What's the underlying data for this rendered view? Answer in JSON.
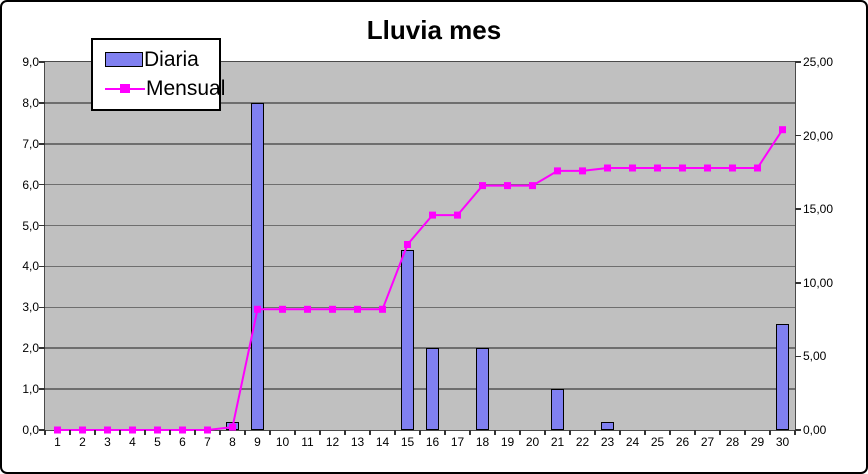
{
  "figure": {
    "title": "Lluvia mes"
  },
  "legend": {
    "items": [
      {
        "label": "Diaria",
        "swatch": "bar-swatch-icon"
      },
      {
        "label": "Mensual",
        "swatch": "line-swatch-icon"
      }
    ]
  },
  "chart_data": {
    "type": "bar",
    "subtype": "combo-bar-line",
    "title": "Lluvia mes",
    "xlabel": "",
    "ylabel": "",
    "grid": true,
    "legend_position": "top-left",
    "plot_bg": "#C0C0C0",
    "categories": [
      1,
      2,
      3,
      4,
      5,
      6,
      7,
      8,
      9,
      10,
      11,
      12,
      13,
      14,
      15,
      16,
      17,
      18,
      19,
      20,
      21,
      22,
      23,
      24,
      25,
      26,
      27,
      28,
      29,
      30
    ],
    "series": [
      {
        "name": "Diaria",
        "type": "bar",
        "axis": "left",
        "color": "#8080F0",
        "border_color": "#000000",
        "values": [
          0,
          0,
          0,
          0,
          0,
          0,
          0,
          0.2,
          8,
          0,
          0,
          0,
          0,
          0,
          4.4,
          2,
          0,
          2,
          0,
          0,
          1,
          0,
          0.2,
          0,
          0,
          0,
          0,
          0,
          0,
          2.6
        ]
      },
      {
        "name": "Mensual",
        "type": "line",
        "axis": "right",
        "color": "#FF00FF",
        "marker": "square",
        "values": [
          0,
          0,
          0,
          0,
          0,
          0,
          0,
          0.2,
          8.2,
          8.2,
          8.2,
          8.2,
          8.2,
          8.2,
          12.6,
          14.6,
          14.6,
          16.6,
          16.6,
          16.6,
          17.6,
          17.6,
          17.8,
          17.8,
          17.8,
          17.8,
          17.8,
          17.8,
          17.8,
          20.4
        ]
      }
    ],
    "left_axis": {
      "min": 0,
      "max": 9,
      "step": 1,
      "tick_labels": [
        "0,0",
        "1,0",
        "2,0",
        "3,0",
        "4,0",
        "5,0",
        "6,0",
        "7,0",
        "8,0",
        "9,0"
      ]
    },
    "right_axis": {
      "min": 0,
      "max": 25,
      "step": 5,
      "tick_labels": [
        "0,00",
        "5,00",
        "10,00",
        "15,00",
        "20,00",
        "25,00"
      ]
    },
    "gridline_values_left": [
      1,
      2,
      3,
      4,
      5,
      6,
      7,
      8
    ]
  }
}
